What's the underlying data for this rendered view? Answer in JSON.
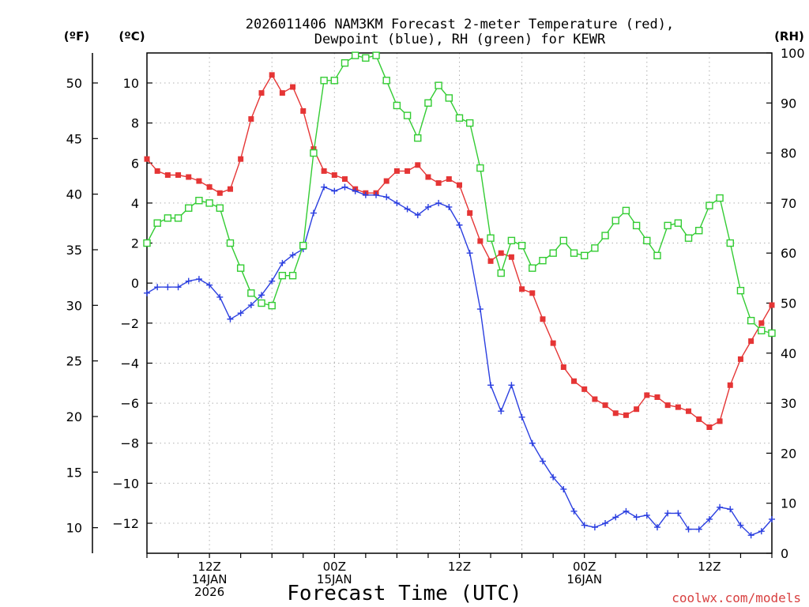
{
  "chart_data": {
    "type": "line",
    "title_line1": "2026011406 NAM3KM Forecast 2-meter Temperature (red),",
    "title_line2": "Dewpoint (blue), RH (green) for KEWR",
    "unit_f": "(ºF)",
    "unit_c": "(ºC)",
    "unit_rh": "(RH)",
    "xlabel": "Forecast Time (UTC)",
    "credit": "coolwx.com/models",
    "x_range_hours": [
      0,
      60
    ],
    "ylim_c": [
      -13.5,
      11.5
    ],
    "ylim_rh": [
      0,
      100
    ],
    "ylim_f": [
      7.7,
      52.7
    ],
    "yticks_c": [
      10,
      8,
      6,
      4,
      2,
      0,
      -2,
      -4,
      -6,
      -8,
      -10,
      -12
    ],
    "ytick_labels_c": [
      "10",
      "8",
      "6",
      "4",
      "2",
      "0",
      "−2",
      "−4",
      "−6",
      "−8",
      "−10",
      "−12"
    ],
    "yticks_f": [
      50,
      45,
      40,
      35,
      30,
      25,
      20,
      15,
      10
    ],
    "ytick_labels_f": [
      "50",
      "45",
      "40",
      "35",
      "30",
      "25",
      "20",
      "15",
      "10"
    ],
    "yticks_rh": [
      100,
      90,
      80,
      70,
      60,
      50,
      40,
      30,
      20,
      10,
      0
    ],
    "ytick_labels_rh": [
      "100",
      "90",
      "80",
      "70",
      "60",
      "50",
      "40",
      "30",
      "20",
      "10",
      "0"
    ],
    "x_ticks": [
      {
        "hour": 6,
        "lines": [
          "12Z",
          "14JAN",
          "2026"
        ]
      },
      {
        "hour": 18,
        "lines": [
          "00Z",
          "15JAN"
        ]
      },
      {
        "hour": 30,
        "lines": [
          "12Z"
        ]
      },
      {
        "hour": 42,
        "lines": [
          "00Z",
          "16JAN"
        ]
      },
      {
        "hour": 54,
        "lines": [
          "12Z"
        ]
      }
    ],
    "series": [
      {
        "name": "Temperature",
        "unit": "C",
        "color": "#e53535",
        "marker": "filled-square",
        "values": [
          6.2,
          5.6,
          5.4,
          5.4,
          5.3,
          5.1,
          4.8,
          4.5,
          4.7,
          6.2,
          8.2,
          9.5,
          10.4,
          9.5,
          9.8,
          8.6,
          6.7,
          5.6,
          5.4,
          5.2,
          4.7,
          4.5,
          4.5,
          5.1,
          5.6,
          5.6,
          5.9,
          5.3,
          5.0,
          5.2,
          4.9,
          3.5,
          2.1,
          1.1,
          1.5,
          1.3,
          -0.3,
          -0.5,
          -1.8,
          -3.0,
          -4.2,
          -4.9,
          -5.3,
          -5.8,
          -6.1,
          -6.5,
          -6.6,
          -6.3,
          -5.6,
          -5.7,
          -6.1,
          -6.2,
          -6.4,
          -6.8,
          -7.2,
          -6.9,
          -5.1,
          -3.8,
          -2.9,
          -2.0,
          -1.1
        ]
      },
      {
        "name": "Dewpoint",
        "unit": "C",
        "color": "#2b3fe0",
        "marker": "plus",
        "values": [
          -0.5,
          -0.2,
          -0.2,
          -0.2,
          0.1,
          0.2,
          -0.1,
          -0.7,
          -1.8,
          -1.5,
          -1.1,
          -0.6,
          0.1,
          1.0,
          1.4,
          1.7,
          3.5,
          4.8,
          4.6,
          4.8,
          4.6,
          4.4,
          4.4,
          4.3,
          4.0,
          3.7,
          3.4,
          3.8,
          4.0,
          3.8,
          2.9,
          1.5,
          -1.3,
          -5.1,
          -6.4,
          -5.1,
          -6.7,
          -8.0,
          -8.9,
          -9.7,
          -10.3,
          -11.4,
          -12.1,
          -12.2,
          -12.0,
          -11.7,
          -11.4,
          -11.7,
          -11.6,
          -12.2,
          -11.5,
          -11.5,
          -12.3,
          -12.3,
          -11.8,
          -11.2,
          -11.3,
          -12.1,
          -12.6,
          -12.4,
          -11.8
        ]
      },
      {
        "name": "RH",
        "unit": "%",
        "color": "#33cc33",
        "marker": "open-square",
        "values": [
          62,
          66,
          67,
          67,
          69,
          70.5,
          70,
          69,
          62,
          57,
          52,
          50,
          49.5,
          55.5,
          55.5,
          61.5,
          80,
          94.5,
          94.5,
          98,
          99.5,
          99,
          99.5,
          94.5,
          89.5,
          87.5,
          83,
          90,
          93.5,
          91,
          87,
          86,
          77,
          63,
          56,
          62.5,
          61.5,
          57,
          58.5,
          60,
          62.5,
          60,
          59.5,
          61,
          63.5,
          66.5,
          68.5,
          65.5,
          62.5,
          59.5,
          65.5,
          66,
          63,
          64.5,
          69.5,
          71,
          62,
          52.5,
          46.5,
          44.5,
          44
        ]
      }
    ]
  }
}
